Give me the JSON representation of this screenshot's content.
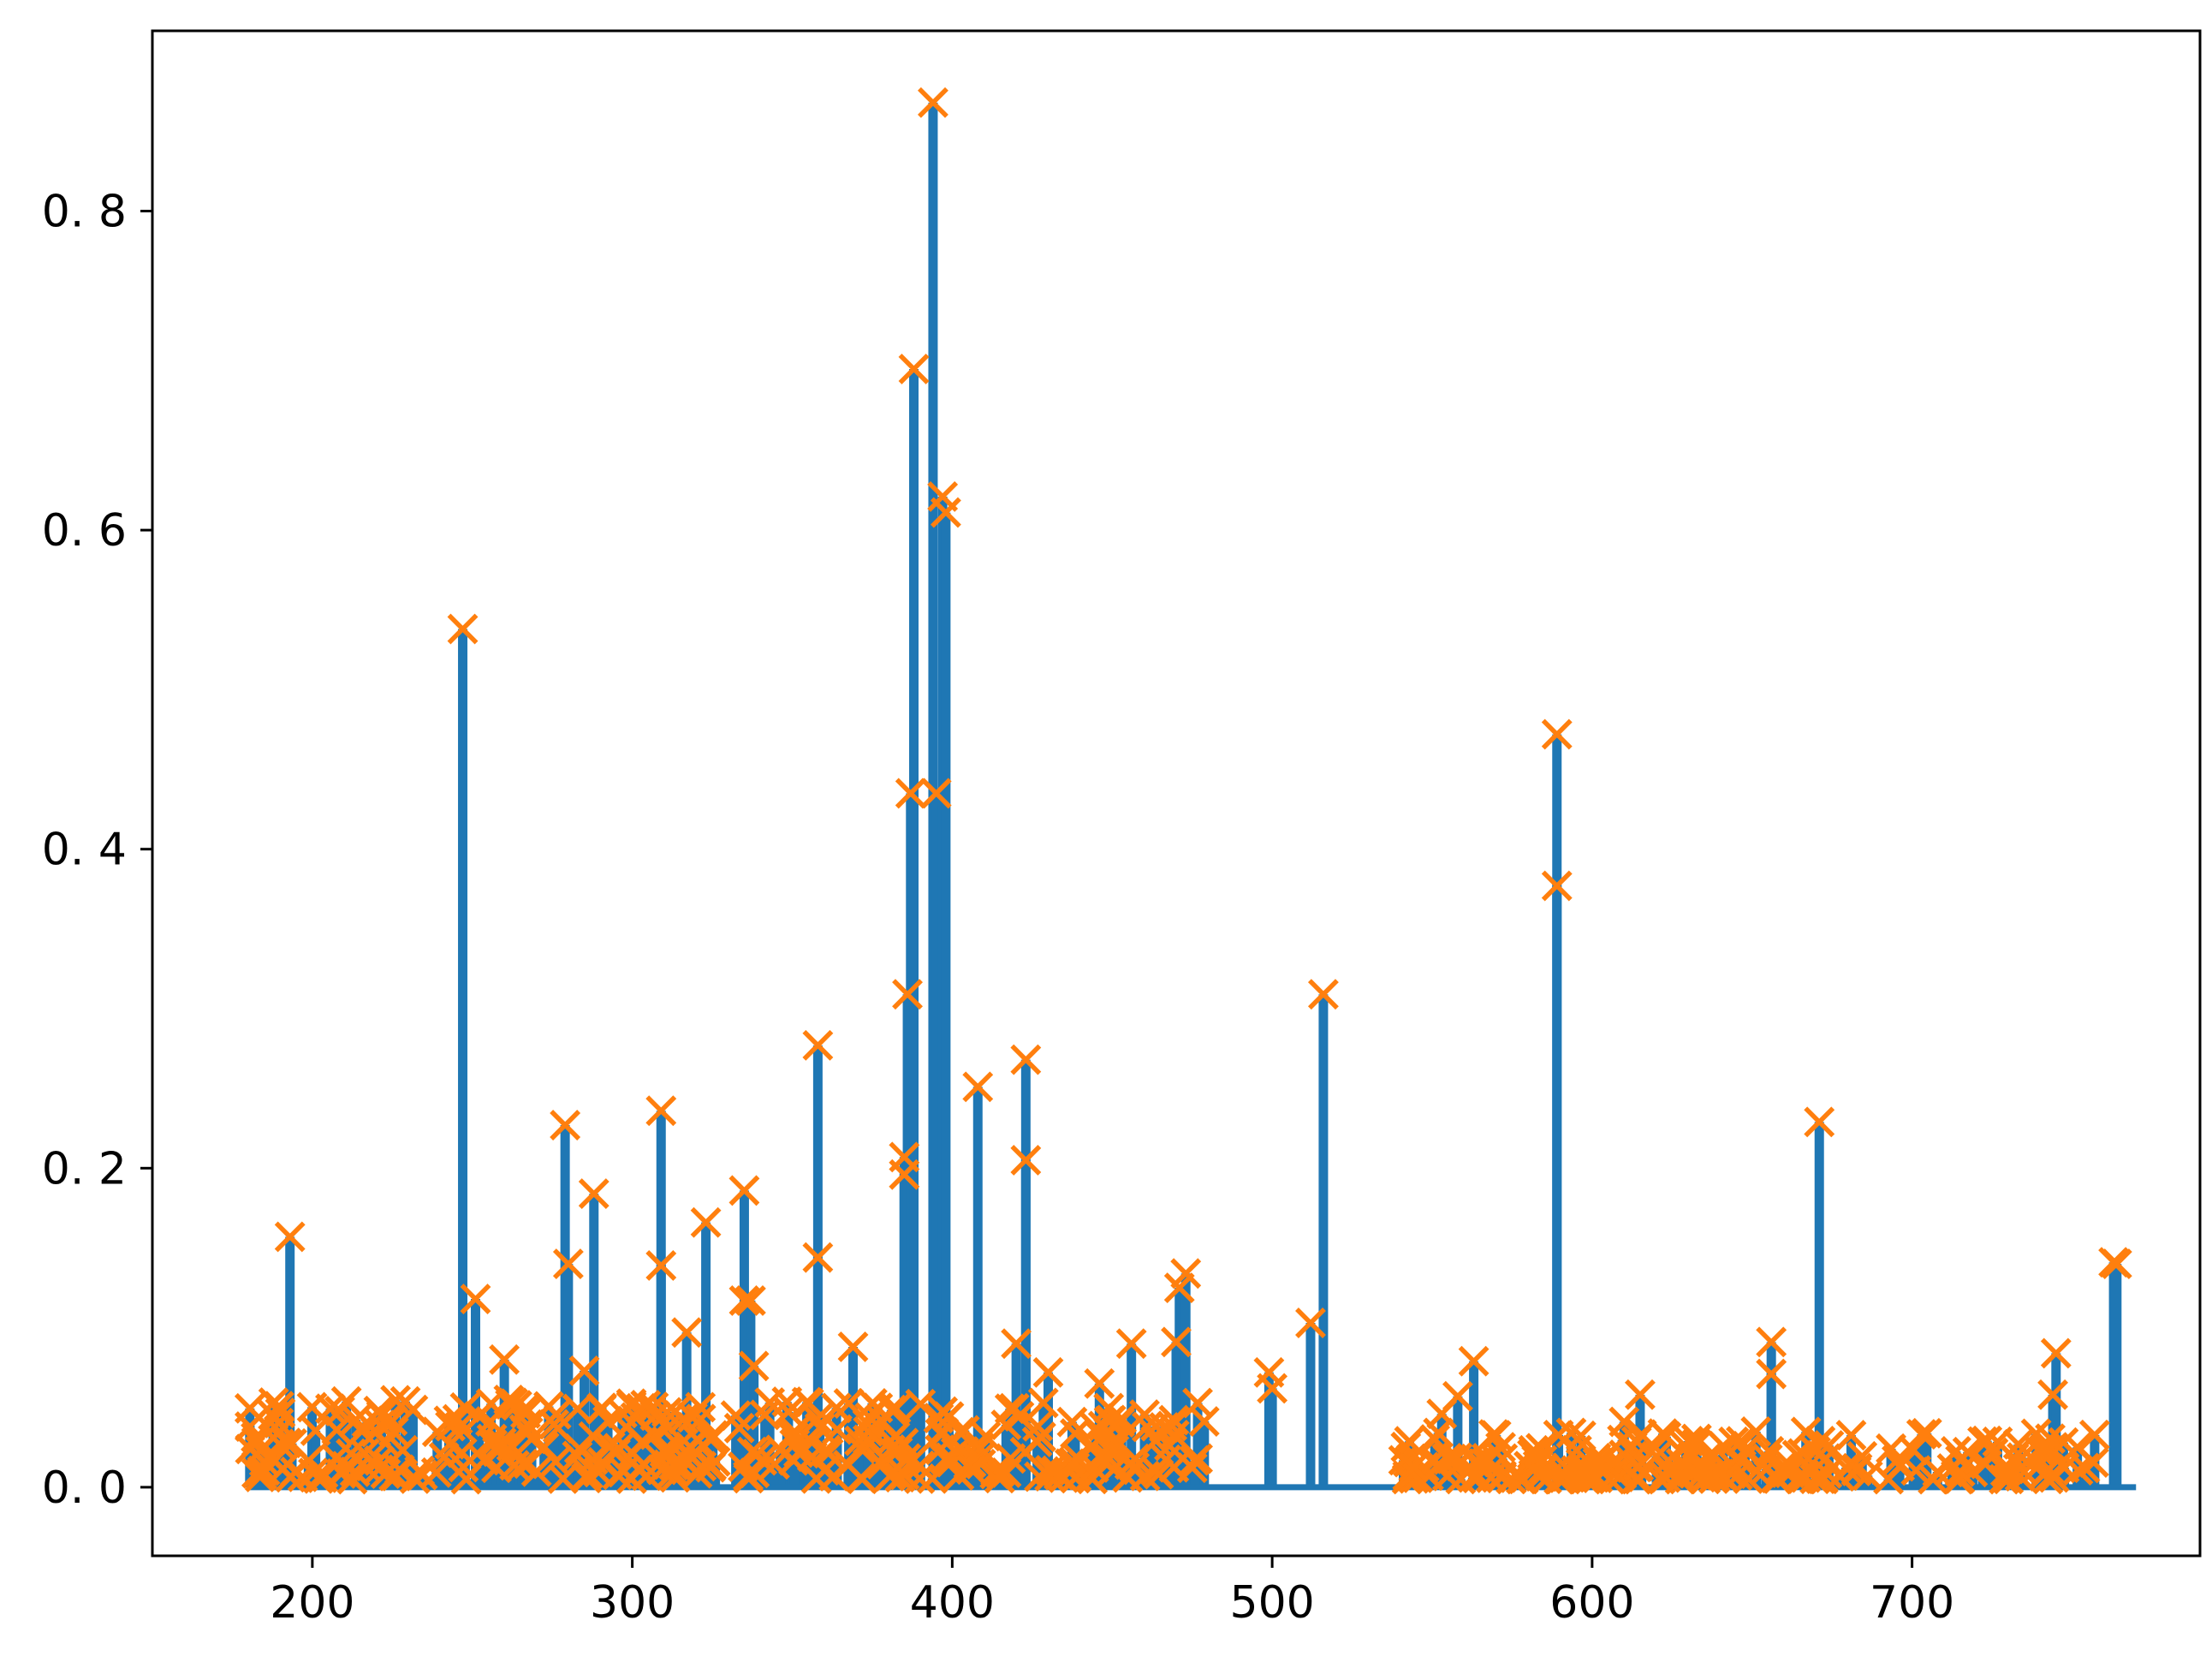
{
  "chart_data": {
    "type": "stem",
    "title": "",
    "xlabel": "",
    "ylabel": "",
    "xlim": [
      150,
      790
    ],
    "ylim": [
      -0.043,
      0.913
    ],
    "xticks": [
      200,
      300,
      400,
      500,
      600,
      700
    ],
    "yticks": [
      0.0,
      0.2,
      0.4,
      0.6,
      0.8
    ],
    "xtick_labels": [
      "200",
      "300",
      "400",
      "500",
      "600",
      "700"
    ],
    "ytick_labels": [
      "0. 0",
      "0. 2",
      "0. 4",
      "0. 6",
      "0. 8"
    ],
    "baseline": {
      "y": 0,
      "from": 180,
      "to": 770
    },
    "grid": false,
    "legend": "none",
    "colors": {
      "stem": "#1f77b4",
      "marker": "#ff7f0e",
      "axes": "#000000"
    },
    "peaks": [
      [
        193,
        0.157
      ],
      [
        247,
        0.538
      ],
      [
        251,
        0.118
      ],
      [
        260,
        0.08
      ],
      [
        279,
        0.227
      ],
      [
        280,
        0.14
      ],
      [
        285,
        0.073
      ],
      [
        288,
        0.184
      ],
      [
        309,
        0.236
      ],
      [
        309,
        0.139
      ],
      [
        317,
        0.097
      ],
      [
        323,
        0.166
      ],
      [
        335,
        0.186
      ],
      [
        335,
        0.117
      ],
      [
        337,
        0.117
      ],
      [
        338,
        0.076
      ],
      [
        358,
        0.277
      ],
      [
        358,
        0.144
      ],
      [
        369,
        0.088
      ],
      [
        385,
        0.196
      ],
      [
        385,
        0.207
      ],
      [
        386,
        0.309
      ],
      [
        387,
        0.435
      ],
      [
        388,
        0.701
      ],
      [
        394,
        0.868
      ],
      [
        395,
        0.435
      ],
      [
        397,
        0.621
      ],
      [
        398,
        0.611
      ],
      [
        408,
        0.251
      ],
      [
        420,
        0.09
      ],
      [
        423,
        0.268
      ],
      [
        423,
        0.205
      ],
      [
        430,
        0.072
      ],
      [
        446,
        0.065
      ],
      [
        456,
        0.09
      ],
      [
        470,
        0.091
      ],
      [
        471,
        0.125
      ],
      [
        473,
        0.134
      ],
      [
        499,
        0.072
      ],
      [
        500,
        0.062
      ],
      [
        512,
        0.103
      ],
      [
        516,
        0.309
      ],
      [
        553,
        0.046
      ],
      [
        558,
        0.057
      ],
      [
        563,
        0.079
      ],
      [
        589,
        0.472
      ],
      [
        589,
        0.377
      ],
      [
        610,
        0.041
      ],
      [
        615,
        0.058
      ],
      [
        656,
        0.091
      ],
      [
        656,
        0.071
      ],
      [
        671,
        0.229
      ],
      [
        744,
        0.058
      ],
      [
        745,
        0.084
      ],
      [
        763,
        0.141
      ],
      [
        764,
        0.14
      ]
    ],
    "noise": {
      "count": 560,
      "x_range": [
        182,
        762
      ],
      "typical_y_range": [
        0.0,
        0.05
      ],
      "dense_regions": [
        [
          180,
          480
        ],
        [
          540,
          680
        ]
      ],
      "sparse_regions": [
        [
          680,
          760
        ]
      ]
    }
  }
}
